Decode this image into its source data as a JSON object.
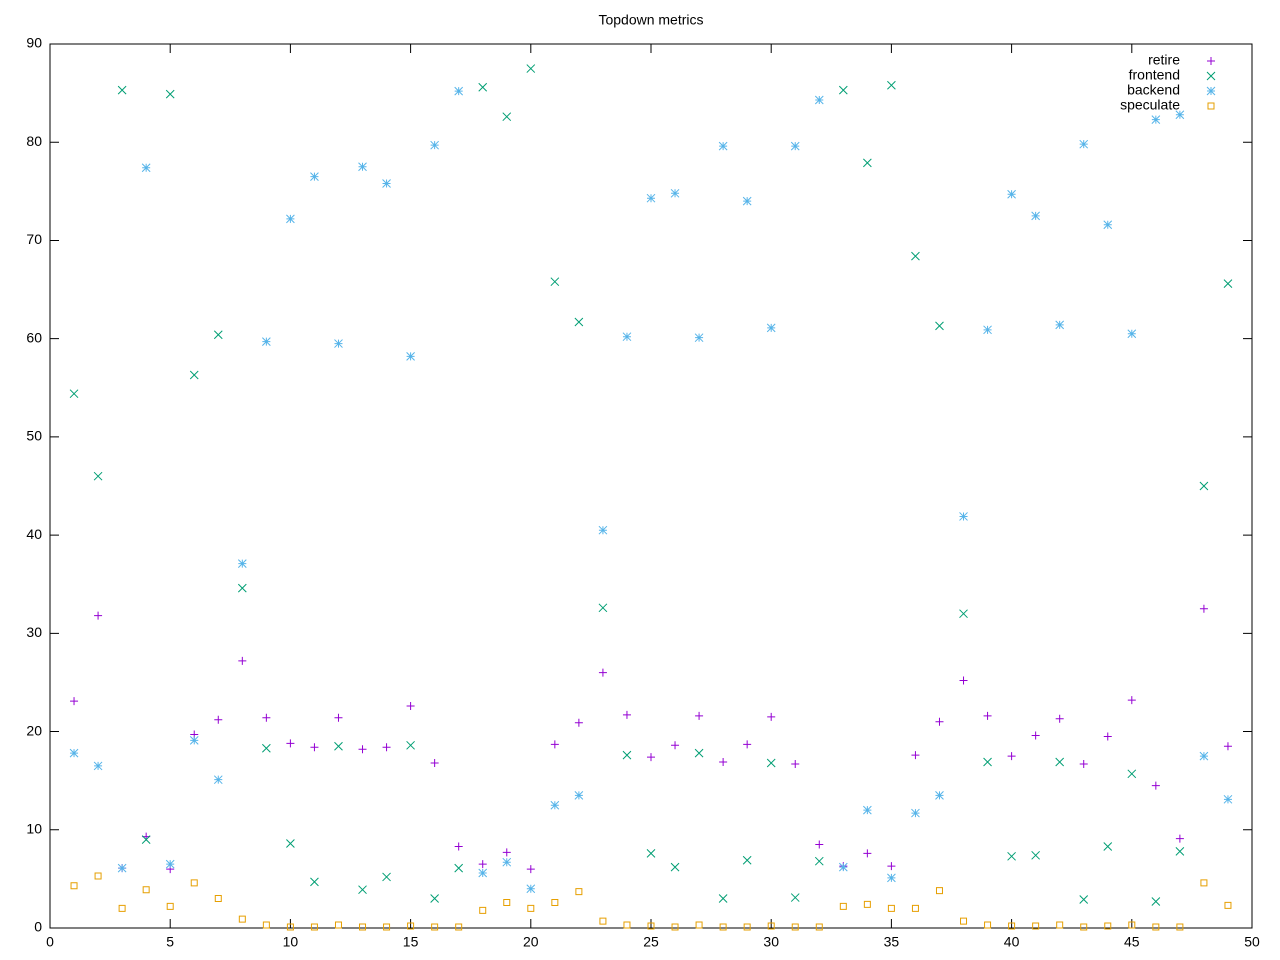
{
  "chart_data": {
    "type": "scatter",
    "title": "Topdown metrics",
    "x": [
      1,
      2,
      3,
      4,
      5,
      6,
      7,
      8,
      9,
      10,
      11,
      12,
      13,
      14,
      15,
      16,
      17,
      18,
      19,
      20,
      21,
      22,
      23,
      24,
      25,
      26,
      27,
      28,
      29,
      30,
      31,
      32,
      33,
      34,
      35,
      36,
      37,
      38,
      39,
      40,
      41,
      42,
      43,
      44,
      45,
      46,
      47,
      48,
      49
    ],
    "xlim": [
      0,
      50
    ],
    "xticks": [
      0,
      5,
      10,
      15,
      20,
      25,
      30,
      35,
      40,
      45,
      50
    ],
    "ylim": [
      0,
      90
    ],
    "yticks": [
      0,
      10,
      20,
      30,
      40,
      50,
      60,
      70,
      80,
      90
    ],
    "grid": false,
    "legend": "top-right",
    "series": [
      {
        "name": "retire",
        "color": "#9400d3",
        "marker": "plus",
        "values": [
          23.1,
          31.8,
          6.1,
          9.3,
          6.0,
          19.7,
          21.2,
          27.2,
          21.4,
          18.8,
          18.4,
          21.4,
          18.2,
          18.4,
          22.6,
          16.8,
          8.3,
          6.5,
          7.7,
          6.0,
          18.7,
          20.9,
          26.0,
          21.7,
          17.4,
          18.6,
          21.6,
          16.9,
          18.7,
          21.5,
          16.7,
          8.5,
          6.3,
          7.6,
          6.3,
          17.6,
          21.0,
          25.2,
          21.6,
          17.5,
          19.6,
          21.3,
          16.7,
          19.5,
          23.2,
          14.5,
          9.1,
          32.5,
          18.5
        ]
      },
      {
        "name": "frontend",
        "color": "#009e73",
        "marker": "cross",
        "values": [
          54.4,
          46.0,
          85.3,
          9.0,
          84.9,
          56.3,
          60.4,
          34.6,
          18.3,
          8.6,
          4.7,
          18.5,
          3.9,
          5.2,
          18.6,
          3.0,
          6.1,
          85.6,
          82.6,
          87.5,
          65.8,
          61.7,
          32.6,
          17.6,
          7.6,
          6.2,
          17.8,
          3.0,
          6.9,
          16.8,
          3.1,
          6.8,
          85.3,
          77.9,
          85.8,
          68.4,
          61.3,
          32.0,
          16.9,
          7.3,
          7.4,
          16.9,
          2.9,
          8.3,
          15.7,
          2.7,
          7.8,
          45.0,
          65.6
        ]
      },
      {
        "name": "backend",
        "color": "#56b4e9",
        "marker": "star",
        "values": [
          17.8,
          16.5,
          6.1,
          77.4,
          6.5,
          19.1,
          15.1,
          37.1,
          59.7,
          72.2,
          76.5,
          59.5,
          77.5,
          75.8,
          58.2,
          79.7,
          85.2,
          5.6,
          6.7,
          4.0,
          12.5,
          13.5,
          40.5,
          60.2,
          74.3,
          74.8,
          60.1,
          79.6,
          74.0,
          61.1,
          79.6,
          84.3,
          6.2,
          12.0,
          5.1,
          11.7,
          13.5,
          41.9,
          60.9,
          74.7,
          72.5,
          61.4,
          79.8,
          71.6,
          60.5,
          82.3,
          82.8,
          17.5,
          13.1
        ]
      },
      {
        "name": "speculate",
        "color": "#e69f00",
        "marker": "square",
        "values": [
          4.3,
          5.3,
          2.0,
          3.9,
          2.2,
          4.6,
          3.0,
          0.9,
          0.3,
          0.1,
          0.1,
          0.3,
          0.1,
          0.1,
          0.2,
          0.1,
          0.1,
          1.8,
          2.6,
          2.0,
          2.6,
          3.7,
          0.7,
          0.3,
          0.2,
          0.1,
          0.3,
          0.1,
          0.1,
          0.2,
          0.1,
          0.1,
          2.2,
          2.4,
          2.0,
          2.0,
          3.8,
          0.7,
          0.3,
          0.2,
          0.2,
          0.3,
          0.1,
          0.2,
          0.3,
          0.1,
          0.1,
          4.6,
          2.3
        ]
      }
    ]
  }
}
